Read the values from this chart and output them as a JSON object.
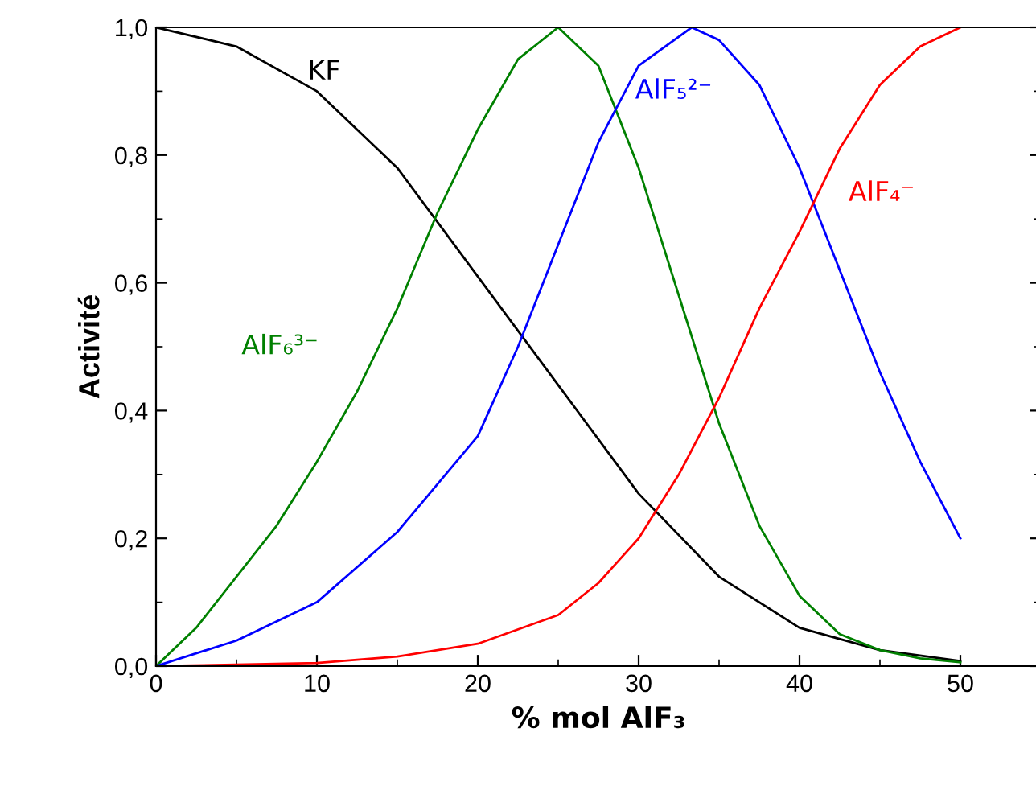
{
  "chart_data": {
    "type": "line",
    "xlabel": "% mol AlF₃",
    "ylabel": "Activité",
    "xlim": [
      0,
      55
    ],
    "xticks": [
      0,
      10,
      20,
      30,
      40,
      50
    ],
    "ylim": [
      0,
      1.0
    ],
    "yticks": [
      {
        "value": 0,
        "label": "0,0"
      },
      {
        "value": 0.2,
        "label": "0,2"
      },
      {
        "value": 0.4,
        "label": "0,4"
      },
      {
        "value": 0.6,
        "label": "0,6"
      },
      {
        "value": 0.8,
        "label": "0,8"
      },
      {
        "value": 1.0,
        "label": "1,0"
      }
    ],
    "grid": false,
    "legend": false,
    "marker": "none",
    "line_style": "solid",
    "series": [
      {
        "name": "KF",
        "color": "#000000",
        "x": [
          0,
          5,
          10,
          15,
          20,
          25,
          30,
          35,
          40,
          45,
          50
        ],
        "values": [
          1.0,
          0.97,
          0.9,
          0.78,
          0.61,
          0.44,
          0.27,
          0.14,
          0.06,
          0.025,
          0.008
        ]
      },
      {
        "name": "AlF₆³⁻",
        "color": "#008000",
        "x": [
          0,
          2.5,
          5,
          7.5,
          10,
          12.5,
          15,
          17.5,
          20,
          22.5,
          25,
          27.5,
          30,
          32.5,
          35,
          37.5,
          40,
          42.5,
          45,
          47.5,
          50
        ],
        "values": [
          0,
          0.06,
          0.14,
          0.22,
          0.32,
          0.43,
          0.56,
          0.71,
          0.84,
          0.95,
          1.0,
          0.94,
          0.78,
          0.58,
          0.38,
          0.22,
          0.11,
          0.05,
          0.025,
          0.012,
          0.006
        ]
      },
      {
        "name": "AlF₅²⁻",
        "color": "#0000ff",
        "x": [
          0,
          5,
          10,
          15,
          20,
          22.5,
          25,
          27.5,
          30,
          33.3,
          35,
          37.5,
          40,
          42.5,
          45,
          47.5,
          50
        ],
        "values": [
          0,
          0.04,
          0.1,
          0.21,
          0.36,
          0.5,
          0.66,
          0.82,
          0.94,
          1.0,
          0.98,
          0.91,
          0.78,
          0.62,
          0.46,
          0.32,
          0.2
        ]
      },
      {
        "name": "AlF₄⁻",
        "color": "#ff0000",
        "x": [
          0,
          10,
          15,
          20,
          25,
          27.5,
          30,
          32.5,
          35,
          37.5,
          40,
          42.5,
          45,
          47.5,
          50
        ],
        "values": [
          0,
          0.005,
          0.015,
          0.035,
          0.08,
          0.13,
          0.2,
          0.3,
          0.42,
          0.56,
          0.68,
          0.81,
          0.91,
          0.97,
          1.0
        ]
      }
    ]
  }
}
